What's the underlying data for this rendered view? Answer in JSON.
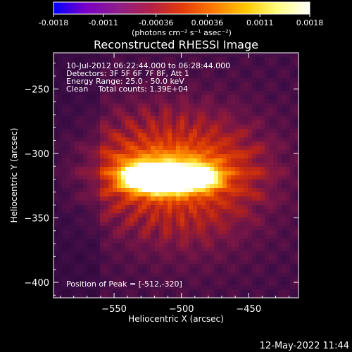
{
  "colors": {
    "colorbar_stops": [
      "#0000ff",
      "#7a00c8",
      "#8e1e8a",
      "#b0204a",
      "#e23a0a",
      "#ff7a00",
      "#ffc800",
      "#ffff80",
      "#ffffff"
    ],
    "background": "#000000",
    "image_bg": "#4a1a52"
  },
  "colorbar": {
    "tick_labels": [
      "-0.0018",
      "-0.0011",
      "-0.00036",
      "0.00036",
      "0.0011",
      "0.0018"
    ],
    "ticks": [
      -0.0018,
      -0.0011,
      -0.00036,
      0.00036,
      0.0011,
      0.0018
    ],
    "range": [
      -0.0018,
      0.0018
    ],
    "unit_label": "(photons cm⁻² s⁻¹ asec⁻²)"
  },
  "footer": {
    "timestamp": "12-May-2022 11:44"
  },
  "chart_data": {
    "type": "heatmap",
    "title": "Reconstructed RHESSI Image",
    "xlabel": "Heliocentric X (arcsec)",
    "ylabel": "Heliocentric Y (arcsec)",
    "xlim": [
      -595,
      -413
    ],
    "ylim": [
      -412,
      -222
    ],
    "xticks": [
      -550,
      -500,
      -450
    ],
    "yticks": [
      -250,
      -300,
      -350,
      -400
    ],
    "xtick_labels": [
      "−550",
      "−500",
      "−450"
    ],
    "ytick_labels": [
      "−250",
      "−300",
      "−350",
      "−400"
    ],
    "annotations": [
      "10-Jul-2012 06:22:44.000 to 06:28:44.000",
      "Detectors: 3F 5F 6F 7F 8F, Att 1",
      "Energy Range: 25.0 - 50.0 keV",
      "Clean    Total counts: 1.39E+04"
    ],
    "peak_label": "Position of Peak = [-512,-320]",
    "peak": [
      -512,
      -320
    ],
    "sources": [
      {
        "x": -513,
        "y": -321,
        "sx": 14,
        "sy": 7,
        "amp": 1.0
      },
      {
        "x": -485,
        "y": -319,
        "sx": 10,
        "sy": 6,
        "amp": 0.65
      },
      {
        "x": -535,
        "y": -318,
        "sx": 9,
        "sy": 7,
        "amp": 0.5
      },
      {
        "x": -508,
        "y": -314,
        "sx": 32,
        "sy": 15,
        "amp": 0.55
      },
      {
        "x": -505,
        "y": -305,
        "sx": 48,
        "sy": 32,
        "amp": 0.22
      },
      {
        "x": -495,
        "y": -350,
        "sx": 40,
        "sy": 30,
        "amp": 0.12
      }
    ]
  }
}
